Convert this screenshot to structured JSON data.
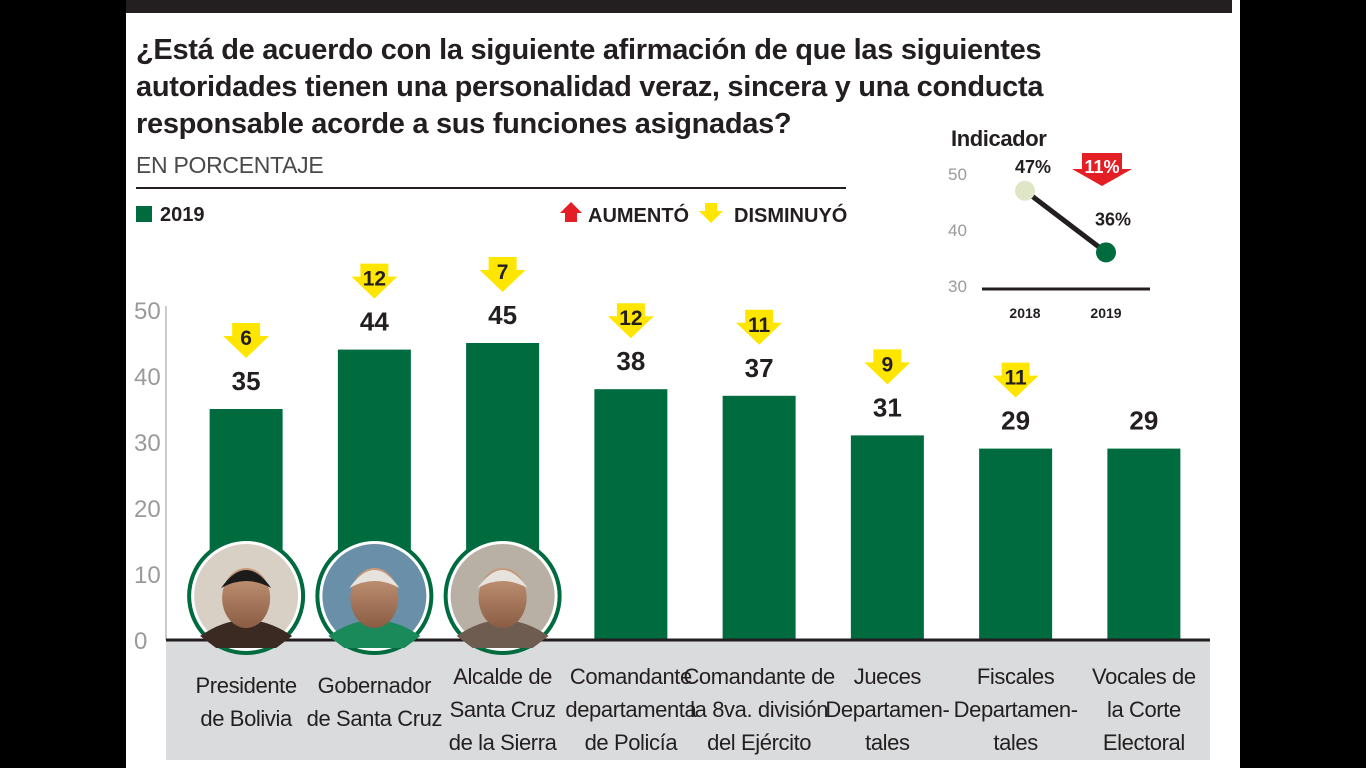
{
  "title": "¿Está de acuerdo con la siguiente afirmación de que las siguientes autoridades tienen una personalidad veraz, sincera y una conducta responsable acorde a sus funciones asignadas?",
  "subtitle": "EN PORCENTAJE",
  "legend": {
    "series_label": "2019",
    "up_label": "AUMENTÓ",
    "down_label": "DISMINUYÓ"
  },
  "colors": {
    "bar": "#006b3f",
    "down_arrow": "#ffe600",
    "up_arrow": "#e31e24",
    "label_band": "#dadbdc",
    "text": "#231f20"
  },
  "chart_data": [
    {
      "type": "bar",
      "categories": [
        [
          "Presidente",
          "de Bolivia"
        ],
        [
          "Gobernador",
          "de Santa Cruz"
        ],
        [
          "Alcalde de",
          "Santa Cruz",
          "de la Sierra"
        ],
        [
          "Comandante",
          "departamenta",
          "de Policía"
        ],
        [
          "Comandante de",
          "la 8va. división",
          "del Ejército"
        ],
        [
          "Jueces",
          "Departamen-",
          "tales"
        ],
        [
          "Fiscales",
          "Departamen-",
          "tales"
        ],
        [
          "Vocales de",
          "la Corte",
          "Electoral"
        ]
      ],
      "series": [
        {
          "name": "2019",
          "values": [
            35,
            44,
            45,
            38,
            37,
            31,
            29,
            29
          ]
        }
      ],
      "changes": [
        {
          "direction": "down",
          "value": 6
        },
        {
          "direction": "down",
          "value": 12
        },
        {
          "direction": "down",
          "value": 7
        },
        {
          "direction": "down",
          "value": 12
        },
        {
          "direction": "down",
          "value": 11
        },
        {
          "direction": "down",
          "value": 9
        },
        {
          "direction": "down",
          "value": 11
        },
        null
      ],
      "photos": [
        "portrait",
        "portrait",
        "portrait",
        null,
        null,
        null,
        null,
        null
      ],
      "yticks": [
        0,
        10,
        20,
        30,
        40,
        50
      ],
      "ylim": [
        0,
        50
      ]
    },
    {
      "type": "line",
      "title": "Indicador",
      "x": [
        "2018",
        "2019"
      ],
      "series": [
        {
          "name": "",
          "values": [
            47,
            36
          ],
          "labels": [
            "47%",
            "36%"
          ]
        }
      ],
      "change": {
        "direction": "down",
        "label": "11%"
      },
      "yticks": [
        30,
        40,
        50
      ],
      "ylim": [
        30,
        50
      ]
    }
  ]
}
